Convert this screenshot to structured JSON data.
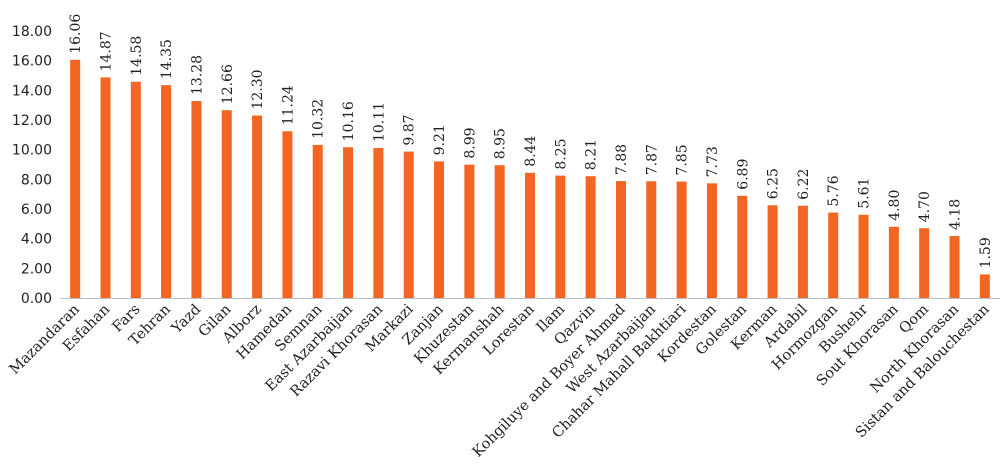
{
  "chart_data": {
    "type": "bar",
    "title": "",
    "xlabel": "",
    "ylabel": "",
    "ylim": [
      0,
      18
    ],
    "yticks": [
      "0.00",
      "2.00",
      "4.00",
      "6.00",
      "8.00",
      "10.00",
      "12.00",
      "14.00",
      "16.00",
      "18.00"
    ],
    "grid": false,
    "bar_color": "#f26522",
    "categories": [
      "Mazandaran",
      "Esfahan",
      "Fars",
      "Tehran",
      "Yazd",
      "Gilan",
      "Alborz",
      "Hamedan",
      "Semnan",
      "East Azarbaijan",
      "Razavi Khorasan",
      "Markazi",
      "Zanjan",
      "Khuzestan",
      "Kermanshah",
      "Lorestan",
      "Ilam",
      "Qazvin",
      "Kohgiluye and Boyer Ahmad",
      "West Azarbaijan",
      "Chahar Mahall Bakhtiari",
      "Kordestan",
      "Golestan",
      "Kerman",
      "Ardabil",
      "Hormozgan",
      "Bushehr",
      "Sout Khorasan",
      "Qom",
      "North Khorasan",
      "Sistan and Balouchestan"
    ],
    "values": [
      16.06,
      14.87,
      14.58,
      14.35,
      13.28,
      12.66,
      12.3,
      11.24,
      10.32,
      10.16,
      10.11,
      9.87,
      9.21,
      8.99,
      8.95,
      8.44,
      8.25,
      8.21,
      7.88,
      7.87,
      7.85,
      7.73,
      6.89,
      6.25,
      6.22,
      5.76,
      5.61,
      4.8,
      4.7,
      4.18,
      1.59
    ],
    "value_labels": [
      "16.06",
      "14.87",
      "14.58",
      "14.35",
      "13.28",
      "12.66",
      "12.30",
      "11.24",
      "10.32",
      "10.16",
      "10.11",
      "9.87",
      "9.21",
      "8.99",
      "8.95",
      "8.44",
      "8.25",
      "8.21",
      "7.88",
      "7.87",
      "7.85",
      "7.73",
      "6.89",
      "6.25",
      "6.22",
      "5.76",
      "5.61",
      "4.80",
      "4.70",
      "4.18",
      "1.59"
    ]
  }
}
